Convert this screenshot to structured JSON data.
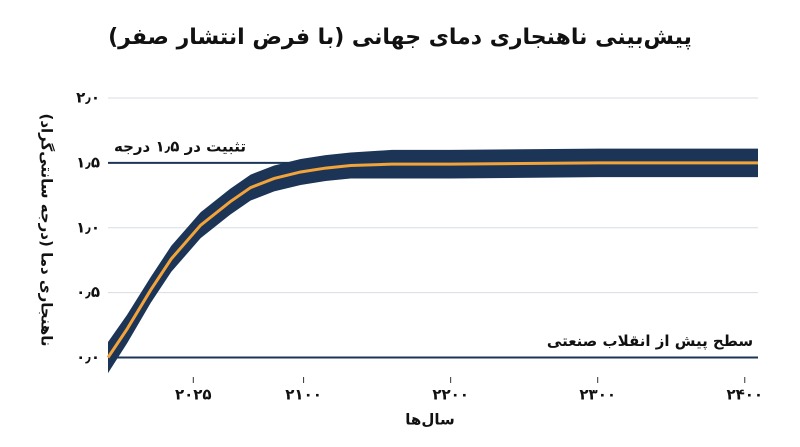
{
  "chart_data": {
    "type": "line",
    "title": "پیش‌بینی ناهنجاری دمای جهانی (با فرض انتشار صفر)",
    "y_label": "ناهنجاری دما (درجه سانتی‌گراد)",
    "x_label": "سال‌ها",
    "x": [
      1967,
      1980,
      1996,
      2010,
      2030,
      2050,
      2064,
      2080,
      2098,
      2115,
      2132,
      2160,
      2200,
      2300,
      2409
    ],
    "series": [
      {
        "color": "#f2a33a",
        "values": [
          0,
          0.22,
          0.52,
          0.76,
          1.02,
          1.2,
          1.31,
          1.38,
          1.43,
          1.46,
          1.48,
          1.49,
          1.49,
          1.5,
          1.5
        ]
      }
    ],
    "band": {
      "color": "#1c3557",
      "lower": [
        -0.12,
        0.11,
        0.42,
        0.66,
        0.92,
        1.1,
        1.21,
        1.28,
        1.33,
        1.36,
        1.38,
        1.38,
        1.38,
        1.39,
        1.39
      ],
      "upper": [
        0.12,
        0.33,
        0.62,
        0.86,
        1.12,
        1.3,
        1.41,
        1.48,
        1.53,
        1.56,
        1.58,
        1.6,
        1.6,
        1.61,
        1.61
      ]
    },
    "hlines": [
      {
        "value": 1.5,
        "label": "تثبیت در ۱٫۵ درجه",
        "color": "#1c3557"
      },
      {
        "value": 0,
        "label": "سطح پیش از انقلاب صنعتی",
        "color": "#1c3557"
      }
    ],
    "xlim": [
      1967,
      2409
    ],
    "ylim": [
      -0.15,
      2.0
    ],
    "xticks": [
      {
        "value": 2025,
        "label": "۲۰۲۵"
      },
      {
        "value": 2100,
        "label": "۲۱۰۰"
      },
      {
        "value": 2200,
        "label": "۲۲۰۰"
      },
      {
        "value": 2300,
        "label": "۲۳۰۰"
      },
      {
        "value": 2400,
        "label": "۲۴۰۰"
      }
    ],
    "yticks": [
      {
        "value": 0,
        "label": "۰٫۰"
      },
      {
        "value": 0.5,
        "label": "۰٫۵"
      },
      {
        "value": 1.0,
        "label": "۱٫۰"
      },
      {
        "value": 1.5,
        "label": "۱٫۵"
      },
      {
        "value": 2.0,
        "label": "۲٫۰"
      }
    ],
    "grid": true
  }
}
